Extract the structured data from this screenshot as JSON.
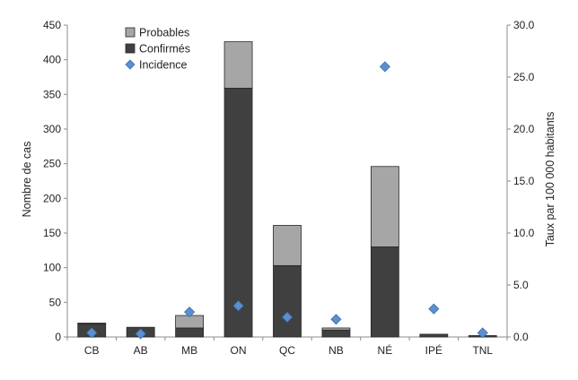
{
  "chart_data": {
    "type": "bar",
    "stacked": true,
    "categories": [
      "CB",
      "AB",
      "MB",
      "ON",
      "QC",
      "NB",
      "NÉ",
      "IPÉ",
      "TNL"
    ],
    "series": [
      {
        "name": "Confirmés",
        "axis": "left",
        "kind": "bar",
        "color": "#404040",
        "values": [
          19,
          14,
          13,
          359,
          103,
          10,
          130,
          4,
          2
        ]
      },
      {
        "name": "Probables",
        "axis": "left",
        "kind": "bar",
        "color": "#a6a6a6",
        "values": [
          1,
          0,
          18,
          67,
          58,
          3,
          116,
          0,
          0
        ]
      },
      {
        "name": "Incidence",
        "axis": "right",
        "kind": "marker",
        "color": "#5b8fd0",
        "values": [
          0.4,
          0.3,
          2.4,
          3.0,
          1.9,
          1.7,
          26.0,
          2.7,
          0.4
        ]
      }
    ],
    "ylabel": "Nombre de cas",
    "y2label": "Taux par 100 000 habitants",
    "ylim": [
      0,
      450
    ],
    "y2lim": [
      0,
      30
    ],
    "yticks": [
      "0",
      "50",
      "100",
      "150",
      "200",
      "250",
      "300",
      "350",
      "400",
      "450"
    ],
    "y2ticks": [
      "0.0",
      "5.0",
      "10.0",
      "15.0",
      "20.0",
      "25.0",
      "30.0"
    ],
    "legend": {
      "position": "top-left",
      "entries": [
        "Probables",
        "Confirmés",
        "Incidence"
      ]
    },
    "grid": false
  }
}
